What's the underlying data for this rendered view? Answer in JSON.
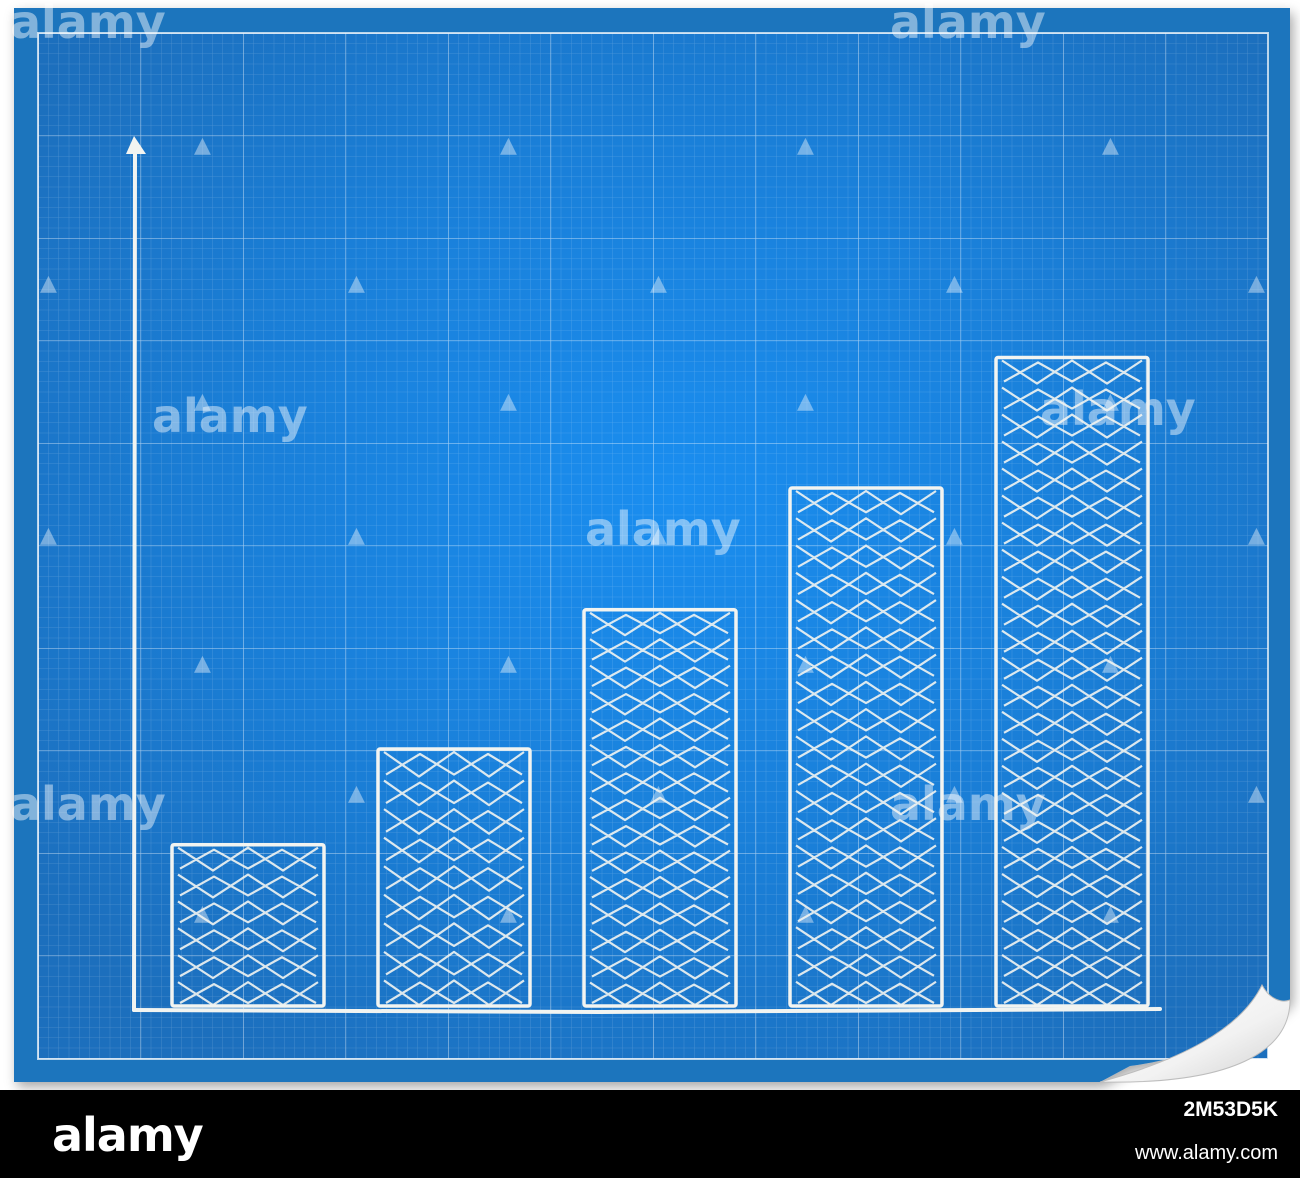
{
  "palette": {
    "paper_outer": "#1f74bd",
    "paper_inner": "#1a86e0",
    "paper_edge": "#2c6aa8",
    "grid_line": "#ffffff",
    "chalk": "#f2f4f1"
  },
  "chart_data": {
    "type": "bar",
    "title": "",
    "xlabel": "",
    "ylabel": "",
    "categories": [
      "",
      "",
      "",
      "",
      ""
    ],
    "values": [
      19,
      30,
      46,
      60,
      75
    ],
    "ylim": [
      0,
      100
    ],
    "grid": true,
    "legend": "none",
    "style": "hand-sketched white chalk bars on blueprint grid paper with curled bottom-right corner"
  },
  "watermark": {
    "text": "alamy",
    "icon": "alamy-a-icon"
  },
  "footer": {
    "brand": "alamy",
    "image_id": "2M53D5K",
    "site": "www.alamy.com"
  }
}
